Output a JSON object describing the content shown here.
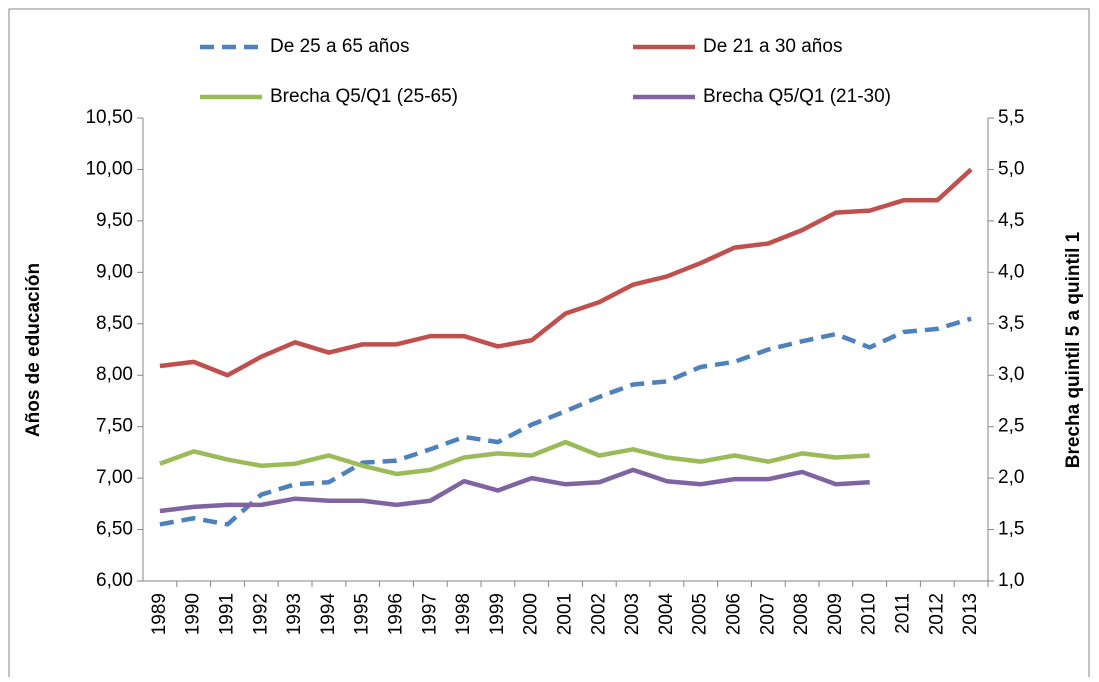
{
  "chart_data": {
    "type": "line",
    "y_label": "Años de educación",
    "y2_label": "Brecha quintil 5 a quintil 1",
    "categories": [
      "1989",
      "1990",
      "1991",
      "1992",
      "1993",
      "1994",
      "1995",
      "1996",
      "1997",
      "1998",
      "1999",
      "2000",
      "2001",
      "2002",
      "2003",
      "2004",
      "2005",
      "2006",
      "2007",
      "2008",
      "2009",
      "2010",
      "2011",
      "2012",
      "2013"
    ],
    "series": [
      {
        "name": "De 25 a 65 años",
        "color": "#4f81bd",
        "dashed": true,
        "values": [
          6.55,
          6.61,
          6.55,
          6.84,
          6.94,
          6.96,
          7.15,
          7.17,
          7.28,
          7.4,
          7.35,
          7.52,
          7.65,
          7.79,
          7.91,
          7.94,
          8.08,
          8.13,
          8.25,
          8.33,
          8.4,
          8.27,
          8.42,
          8.45,
          8.55
        ]
      },
      {
        "name": "De 21 a 30 años",
        "color": "#c0504d",
        "values": [
          8.09,
          8.13,
          8.0,
          8.18,
          8.32,
          8.22,
          8.3,
          8.3,
          8.38,
          8.38,
          8.28,
          8.34,
          8.6,
          8.71,
          8.88,
          8.96,
          9.09,
          9.24,
          9.28,
          9.41,
          9.58,
          9.6,
          9.7,
          9.7,
          10.0
        ]
      },
      {
        "name": "Brecha Q5/Q1 (25-65)",
        "color": "#9bbb59",
        "axis": "y2",
        "values": [
          2.14,
          2.26,
          2.18,
          2.12,
          2.14,
          2.22,
          2.12,
          2.04,
          2.08,
          2.2,
          2.24,
          2.22,
          2.35,
          2.22,
          2.28,
          2.2,
          2.16,
          2.22,
          2.16,
          2.24,
          2.2,
          2.22,
          null,
          null,
          null
        ]
      },
      {
        "name": "Brecha Q5/Q1 (21-30)",
        "color": "#8064a2",
        "axis": "y2",
        "values": [
          1.68,
          1.72,
          1.74,
          1.74,
          1.8,
          1.78,
          1.78,
          1.74,
          1.78,
          1.97,
          1.88,
          2.0,
          1.94,
          1.96,
          2.08,
          1.97,
          1.94,
          1.99,
          1.99,
          2.06,
          1.94,
          1.96,
          null,
          null,
          null
        ]
      }
    ],
    "ylim": [
      6,
      10.5
    ],
    "yticks": [
      {
        "value": 6,
        "label": "6,00"
      },
      {
        "value": 6.5,
        "label": "6,50"
      },
      {
        "value": 7,
        "label": "7,00"
      },
      {
        "value": 7.5,
        "label": "7,50"
      },
      {
        "value": 8,
        "label": "8,00"
      },
      {
        "value": 8.5,
        "label": "8,50"
      },
      {
        "value": 9,
        "label": "9,00"
      },
      {
        "value": 9.5,
        "label": "9,50"
      },
      {
        "value": 10,
        "label": "10,00"
      },
      {
        "value": 10.5,
        "label": "10,50"
      }
    ],
    "y2lim": [
      1,
      5.5
    ],
    "y2ticks": [
      {
        "value": 1,
        "label": "1,0"
      },
      {
        "value": 1.5,
        "label": "1,5"
      },
      {
        "value": 2,
        "label": "2,0"
      },
      {
        "value": 2.5,
        "label": "2,5"
      },
      {
        "value": 3,
        "label": "3,0"
      },
      {
        "value": 3.5,
        "label": "3,5"
      },
      {
        "value": 4,
        "label": "4,0"
      },
      {
        "value": 4.5,
        "label": "4,5"
      },
      {
        "value": 5,
        "label": "5,0"
      },
      {
        "value": 5.5,
        "label": "5,5"
      }
    ],
    "grid": false
  }
}
